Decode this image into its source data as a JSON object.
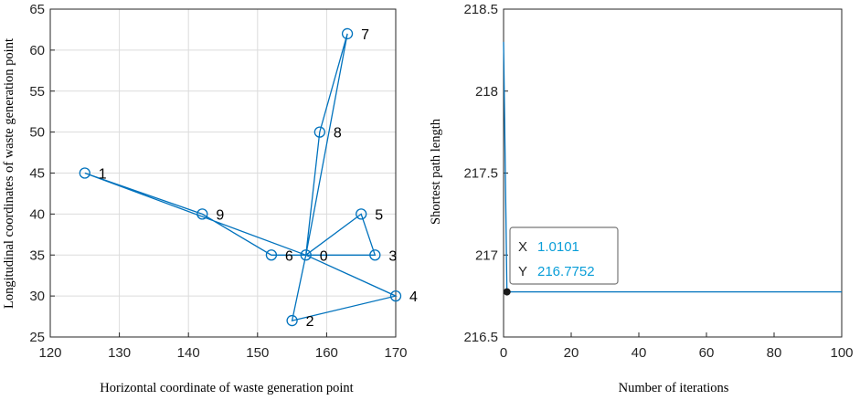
{
  "colors": {
    "series": "#0072BD",
    "grid": "#dcdcdc",
    "axis": "#262626",
    "tip_value": "#0a9ed8"
  },
  "chart_data": [
    {
      "type": "line",
      "xlabel": "Horizontal coordinate of waste generation point",
      "ylabel": "Longitudinal coordinates of waste generation point",
      "xlim": [
        120,
        170
      ],
      "ylim": [
        25,
        65
      ],
      "xticks": [
        120,
        130,
        140,
        150,
        160,
        170
      ],
      "yticks": [
        25,
        30,
        35,
        40,
        45,
        50,
        55,
        60,
        65
      ],
      "grid": true,
      "marker": "circle",
      "points": [
        {
          "label": "0",
          "x": 157,
          "y": 35
        },
        {
          "label": "1",
          "x": 125,
          "y": 45
        },
        {
          "label": "2",
          "x": 155,
          "y": 27
        },
        {
          "label": "3",
          "x": 167,
          "y": 35
        },
        {
          "label": "4",
          "x": 170,
          "y": 30
        },
        {
          "label": "5",
          "x": 165,
          "y": 40
        },
        {
          "label": "6",
          "x": 152,
          "y": 35
        },
        {
          "label": "7",
          "x": 163,
          "y": 62
        },
        {
          "label": "8",
          "x": 159,
          "y": 50
        },
        {
          "label": "9",
          "x": 142,
          "y": 40
        }
      ],
      "route": [
        "0",
        "1",
        "9",
        "6",
        "0",
        "7",
        "8",
        "0",
        "5",
        "3",
        "0",
        "4",
        "2",
        "0"
      ]
    },
    {
      "type": "line",
      "xlabel": "Number of iterations",
      "ylabel": "Shortest path length",
      "xlim": [
        0,
        100
      ],
      "ylim": [
        216.5,
        218.5
      ],
      "xticks": [
        0,
        20,
        40,
        60,
        80,
        100
      ],
      "yticks": [
        216.5,
        217,
        217.5,
        218,
        218.5
      ],
      "grid": false,
      "x": [
        0,
        1.0101,
        100
      ],
      "y": [
        218.3,
        216.7752,
        216.7752
      ],
      "datatip": {
        "x_key": "X",
        "x_value": "1.0101",
        "y_key": "Y",
        "y_value": "216.7752"
      }
    }
  ]
}
